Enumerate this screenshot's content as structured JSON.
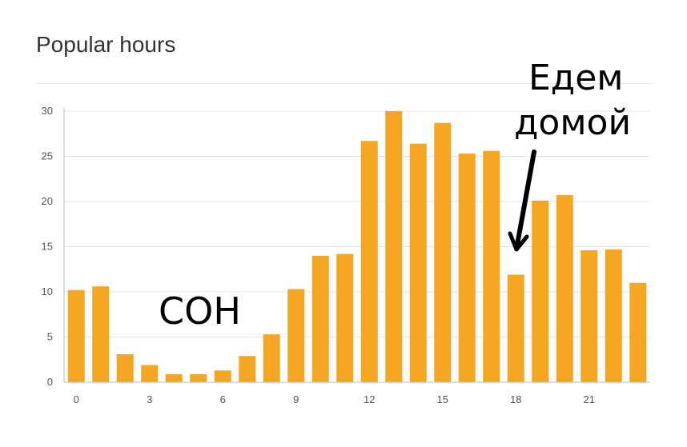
{
  "chart_data": {
    "type": "bar",
    "title": "Popular hours",
    "xlabel": "",
    "ylabel": "",
    "x": [
      0,
      1,
      2,
      3,
      4,
      5,
      6,
      7,
      8,
      9,
      10,
      11,
      12,
      13,
      14,
      15,
      16,
      17,
      18,
      19,
      20,
      21,
      22,
      23
    ],
    "values": [
      10.2,
      10.6,
      3.1,
      1.9,
      0.9,
      0.9,
      1.3,
      2.9,
      5.3,
      10.3,
      14.0,
      14.2,
      26.7,
      30.0,
      26.4,
      28.7,
      25.3,
      25.6,
      11.9,
      20.1,
      20.7,
      14.6,
      14.7,
      11.0
    ],
    "x_tick_labels": [
      "0",
      "3",
      "6",
      "9",
      "12",
      "15",
      "18",
      "21"
    ],
    "x_tick_values": [
      0,
      3,
      6,
      9,
      12,
      15,
      18,
      21
    ],
    "y_ticks": [
      0,
      5,
      10,
      15,
      20,
      25,
      30
    ],
    "ylim": [
      0,
      30
    ],
    "grid": true,
    "colors": {
      "bar": "#F5A623",
      "grid": "#e6e6e6",
      "axis": "#bdbdbd"
    },
    "annotations": [
      {
        "text": "СОН"
      },
      {
        "text": "Едем"
      },
      {
        "text": "домой"
      }
    ]
  }
}
